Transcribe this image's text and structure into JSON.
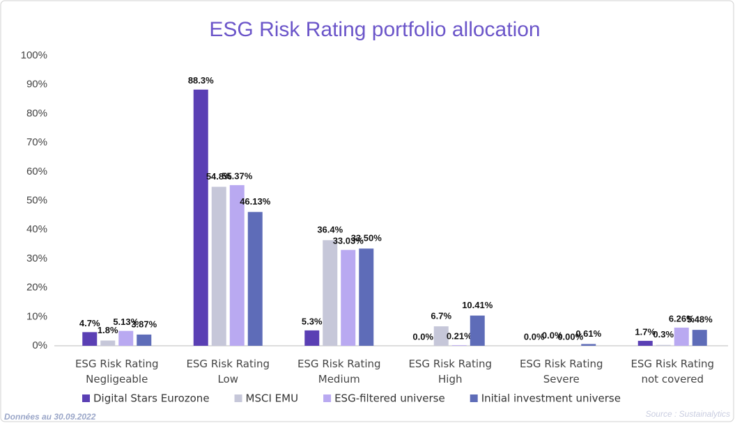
{
  "chart_data": {
    "type": "bar",
    "title": "ESG Risk Rating portfolio allocation",
    "categories": [
      "ESG Risk Rating Negligeable",
      "ESG Risk Rating Low",
      "ESG Risk Rating Medium",
      "ESG Risk Rating High",
      "ESG Risk Rating Severe",
      "ESG Risk Rating not covered"
    ],
    "series": [
      {
        "name": "Digital Stars Eurozone",
        "color": "#5a3fb4",
        "values": [
          4.7,
          88.3,
          5.3,
          0.0,
          0.0,
          1.7
        ],
        "value_labels": [
          "4.7%",
          "88.3%",
          "5.3%",
          "0.0%",
          "0.0%",
          "1.7%"
        ]
      },
      {
        "name": "MSCI EMU",
        "color": "#c6c7d9",
        "values": [
          1.8,
          54.8,
          36.4,
          6.7,
          0.0,
          0.3
        ],
        "value_labels": [
          "1.8%",
          "54.8%",
          "36.4%",
          "6.7%",
          "0.0%",
          "0.3%"
        ]
      },
      {
        "name": "ESG-filtered universe",
        "color": "#b9a9f1",
        "values": [
          5.13,
          55.37,
          33.03,
          0.21,
          0.0,
          6.26
        ],
        "value_labels": [
          "5.13%",
          "55.37%",
          "33.03%",
          "0.21%",
          "0.00%",
          "6.26%"
        ]
      },
      {
        "name": "Initial investment universe",
        "color": "#5e6cb8",
        "values": [
          3.87,
          46.13,
          33.5,
          10.41,
          0.61,
          5.48
        ],
        "value_labels": [
          "3.87%",
          "46.13%",
          "33.50%",
          "10.41%",
          "0.61%",
          "5.48%"
        ]
      }
    ],
    "ylim": [
      0,
      100
    ],
    "yticks": [
      {
        "value": 0,
        "label": "0%"
      },
      {
        "value": 10,
        "label": "10%"
      },
      {
        "value": 20,
        "label": "20%"
      },
      {
        "value": 30,
        "label": "30%"
      },
      {
        "value": 40,
        "label": "40%"
      },
      {
        "value": 50,
        "label": "50%"
      },
      {
        "value": 60,
        "label": "60%"
      },
      {
        "value": 70,
        "label": "70%"
      },
      {
        "value": 80,
        "label": "80%"
      },
      {
        "value": 90,
        "label": "90%"
      },
      {
        "value": 100,
        "label": "100%"
      }
    ],
    "grid": false,
    "legend": "bottom",
    "date_note": "Données au 30.09.2022",
    "source": "Source : Sustainalytics"
  }
}
